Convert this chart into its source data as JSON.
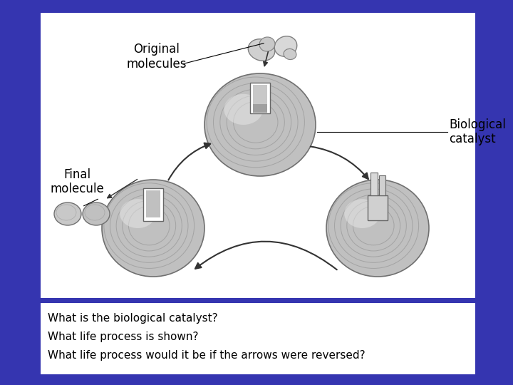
{
  "background_color": "#3535b0",
  "panel_color": "#ffffff",
  "text_color": "#000000",
  "title_questions": [
    "What is the biological catalyst?",
    "What life process is shown?",
    "What life process would it be if the arrows were reversed?"
  ],
  "labels": {
    "original_molecules": "Original\nmolecules",
    "final_molecule": "Final\nmolecule",
    "biological_catalyst": "Biological\ncatalyst"
  },
  "label_fontsize": 11,
  "question_fontsize": 11,
  "enzyme_color_light": "#d0d0d0",
  "enzyme_color_mid": "#b0b0b0",
  "enzyme_color_dark": "#909090",
  "slot_color": "#e8e8e8",
  "slot_shadow": "#c0c0c0"
}
